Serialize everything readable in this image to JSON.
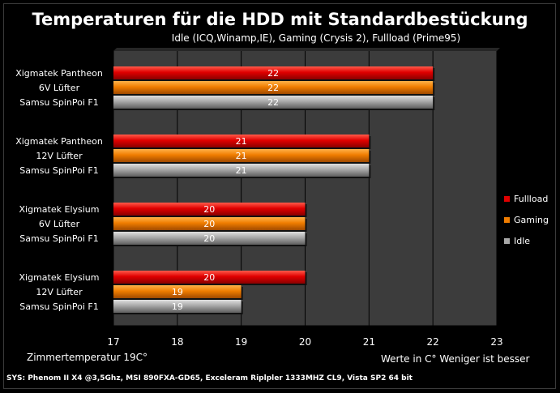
{
  "chart_data": {
    "type": "bar",
    "orientation": "horizontal",
    "title": "Temperaturen für die HDD mit Standardbestückung",
    "subtitle": "Idle (ICQ,Winamp,IE), Gaming (Crysis 2), Fullload (Prime95)",
    "categories": [
      [
        "Xigmatek Pantheon",
        "6V Lüfter",
        "Samsu SpinPoi F1"
      ],
      [
        "Xigmatek Pantheon",
        "12V Lüfter",
        "Samsu SpinPoi F1"
      ],
      [
        "Xigmatek Elysium",
        "6V Lüfter",
        "Samsu SpinPoi F1"
      ],
      [
        "Xigmatek Elysium",
        "12V Lüfter",
        "Samsu SpinPoi F1"
      ]
    ],
    "series": [
      {
        "name": "Fullload",
        "color": "#d40000",
        "values": [
          22,
          21,
          20,
          20
        ]
      },
      {
        "name": "Gaming",
        "color": "#ee7f00",
        "values": [
          22,
          21,
          20,
          19
        ]
      },
      {
        "name": "Idle",
        "color": "#a8a8a8",
        "values": [
          22,
          21,
          20,
          19
        ]
      }
    ],
    "xlim": [
      17,
      23
    ],
    "xticks": [
      17,
      18,
      19,
      20,
      21,
      22,
      23
    ],
    "grid": true,
    "legend_position": "right"
  },
  "notes": {
    "room_temp": "Zimmertemperatur 19C°",
    "units": "Werte in C° Weniger ist besser",
    "system": "SYS: Phenom II X4 @3,5Ghz, MSI 890FXA-GD65, Exceleram Riplpler 1333MHZ CL9, Vista SP2 64 bit"
  }
}
